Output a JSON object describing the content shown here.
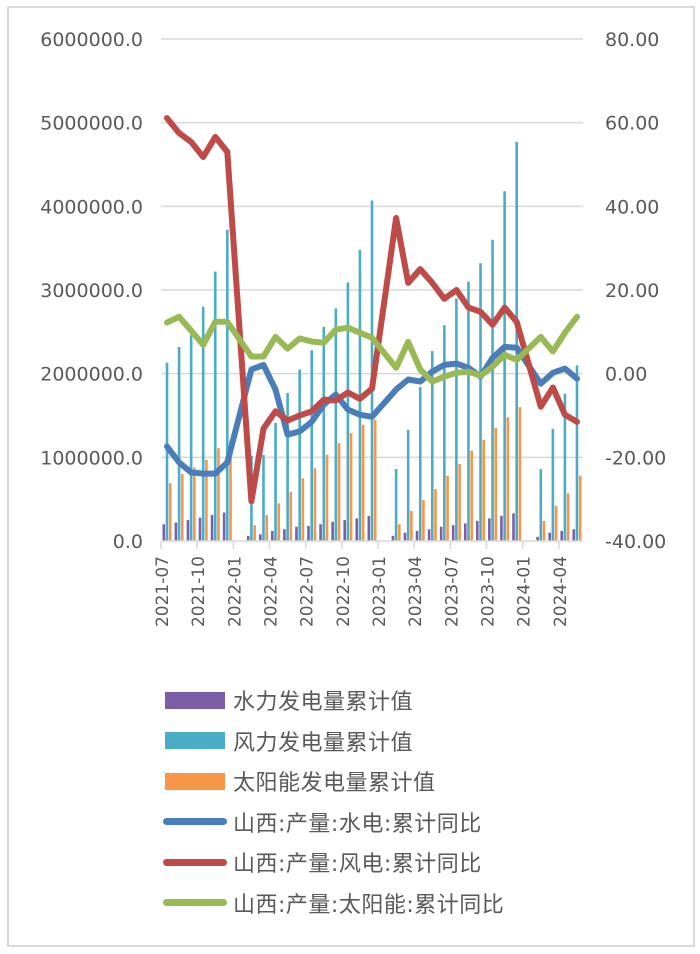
{
  "chart_data": {
    "type": "bar+line",
    "title": "",
    "xlabel": "",
    "ylabel_left": "",
    "ylabel_right": "",
    "left_axis": {
      "min": 0,
      "max": 6000000,
      "step": 1000000,
      "ticks": [
        "0.0",
        "1000000.0",
        "2000000.0",
        "3000000.0",
        "4000000.0",
        "5000000.0",
        "6000000.0"
      ]
    },
    "right_axis": {
      "min": -40,
      "max": 80,
      "step": 20,
      "ticks": [
        "-40.00",
        "-20.00",
        "0.00",
        "20.00",
        "40.00",
        "60.00",
        "80.00"
      ]
    },
    "x_tick_labels": [
      "2021-07",
      "2021-10",
      "2022-01",
      "2022-04",
      "2022-07",
      "2022-10",
      "2023-01",
      "2023-04",
      "2023-07",
      "2023-10",
      "2024-01",
      "2024-04"
    ],
    "grid": true,
    "legend_position": "bottom",
    "categories": [
      "2021-07",
      "2021-08",
      "2021-09",
      "2021-10",
      "2021-11",
      "2021-12",
      "2022-01",
      "2022-02",
      "2022-03",
      "2022-04",
      "2022-05",
      "2022-06",
      "2022-07",
      "2022-08",
      "2022-09",
      "2022-10",
      "2022-11",
      "2022-12",
      "2023-01",
      "2023-02",
      "2023-03",
      "2023-04",
      "2023-05",
      "2023-06",
      "2023-07",
      "2023-08",
      "2023-09",
      "2023-10",
      "2023-11",
      "2023-12",
      "2024-01",
      "2024-02",
      "2024-03",
      "2024-04",
      "2024-05"
    ],
    "bar_series": [
      {
        "name": "水力发电量累计值",
        "color": "#7b5ea7",
        "axis": "left",
        "values": [
          200000,
          220000,
          250000,
          280000,
          310000,
          340000,
          null,
          60000,
          80000,
          120000,
          140000,
          170000,
          180000,
          200000,
          230000,
          250000,
          270000,
          300000,
          null,
          60000,
          100000,
          120000,
          140000,
          170000,
          190000,
          210000,
          240000,
          270000,
          300000,
          330000,
          null,
          50000,
          100000,
          120000,
          140000
        ]
      },
      {
        "name": "风力发电量累计值",
        "color": "#4bacc6",
        "axis": "left",
        "values": [
          2130000,
          2320000,
          2460000,
          2800000,
          3220000,
          3720000,
          null,
          1020000,
          1030000,
          1410000,
          1770000,
          2050000,
          2280000,
          2560000,
          2780000,
          3090000,
          3480000,
          4070000,
          null,
          860000,
          1330000,
          1840000,
          2270000,
          2580000,
          2900000,
          3100000,
          3320000,
          3600000,
          4180000,
          4770000,
          null,
          860000,
          1340000,
          1760000,
          2100000
        ]
      },
      {
        "name": "太阳能发电量累计值",
        "color": "#f79646",
        "axis": "left",
        "values": [
          690000,
          800000,
          880000,
          970000,
          1110000,
          1200000,
          null,
          190000,
          310000,
          450000,
          590000,
          750000,
          870000,
          1030000,
          1170000,
          1290000,
          1390000,
          1450000,
          null,
          200000,
          360000,
          490000,
          620000,
          780000,
          920000,
          1080000,
          1210000,
          1350000,
          1480000,
          1600000,
          null,
          240000,
          420000,
          570000,
          780000
        ]
      }
    ],
    "line_series": [
      {
        "name": "山西:产量:水电:累计同比",
        "color": "#4a7ebb",
        "axis": "right",
        "values": [
          -17.4,
          -21.2,
          -23.6,
          -23.9,
          -23.9,
          -21.2,
          null,
          1.0,
          2.1,
          -3.8,
          -14.6,
          -13.8,
          -11.5,
          -7.4,
          -5.0,
          -8.6,
          -9.8,
          -10.3,
          null,
          -3.8,
          -1.4,
          -1.9,
          0.5,
          2.1,
          2.4,
          1.4,
          -0.7,
          3.8,
          6.4,
          6.2,
          null,
          -2.4,
          0.2,
          1.2,
          -1.2
        ]
      },
      {
        "name": "山西:产量:风电:累计同比",
        "color": "#be4b48",
        "axis": "right",
        "values": [
          61.1,
          57.5,
          55.4,
          51.8,
          56.6,
          53.0,
          null,
          -30.5,
          -13.1,
          -9.0,
          -11.2,
          -10.0,
          -9.0,
          -6.2,
          -6.4,
          -4.5,
          -6.0,
          -3.6,
          null,
          37.2,
          21.7,
          25.0,
          21.7,
          17.9,
          20.0,
          15.8,
          14.8,
          11.7,
          15.8,
          12.4,
          null,
          -7.9,
          -3.3,
          -9.8,
          -11.5
        ]
      },
      {
        "name": "山西:产量:太阳能:累计同比",
        "color": "#98b954",
        "axis": "right",
        "values": [
          12.2,
          13.6,
          10.3,
          6.9,
          12.4,
          12.4,
          null,
          4.1,
          4.1,
          8.8,
          6.0,
          8.4,
          7.7,
          7.4,
          10.5,
          11.0,
          9.8,
          8.6,
          null,
          1.4,
          7.6,
          1.0,
          -1.9,
          -0.7,
          0.2,
          0.5,
          -0.5,
          1.7,
          4.5,
          3.3,
          null,
          8.8,
          5.3,
          9.8,
          13.6
        ]
      }
    ]
  },
  "legend": {
    "items": [
      {
        "label": "水力发电量累计值",
        "kind": "box",
        "color": "#7b5ea7"
      },
      {
        "label": "风力发电量累计值",
        "kind": "box",
        "color": "#4bacc6"
      },
      {
        "label": "太阳能发电量累计值",
        "kind": "box",
        "color": "#f79646"
      },
      {
        "label": "山西:产量:水电:累计同比",
        "kind": "line",
        "color": "#4a7ebb"
      },
      {
        "label": "山西:产量:风电:累计同比",
        "kind": "line",
        "color": "#be4b48"
      },
      {
        "label": "山西:产量:太阳能:累计同比",
        "kind": "line",
        "color": "#98b954"
      }
    ]
  }
}
